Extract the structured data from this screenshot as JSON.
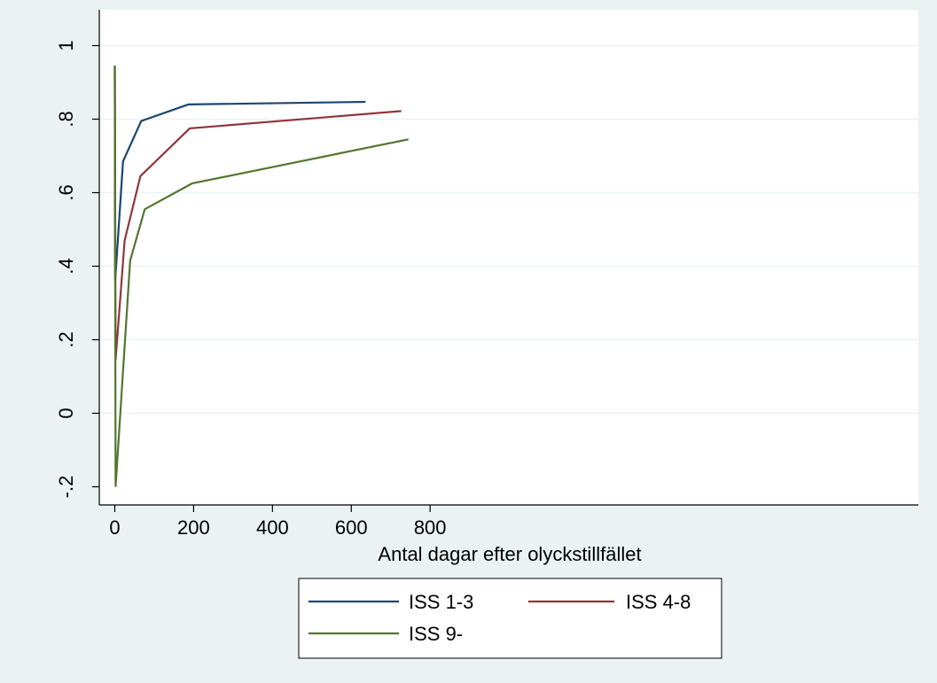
{
  "chart_data": {
    "type": "line",
    "xlabel": "Antal dagar efter olyckstillfället",
    "ylabel": "",
    "xlim": [
      -20,
      805
    ],
    "ylim": [
      -0.2,
      1.0
    ],
    "xticks": [
      0,
      200,
      400,
      600,
      800
    ],
    "xtick_labels": [
      "0",
      "200",
      "400",
      "600",
      "800"
    ],
    "yticks": [
      -0.2,
      0,
      0.2,
      0.4,
      0.6,
      0.8,
      1.0
    ],
    "ytick_labels": [
      "-.2",
      "0",
      ".2",
      ".4",
      ".6",
      ".8",
      "1"
    ],
    "grid": "horizontal",
    "legend_position": "bottom",
    "series": [
      {
        "name": "ISS 1-3",
        "color": "#1a476f",
        "x": [
          0,
          1,
          21,
          67,
          187,
          636
        ],
        "y": [
          0.945,
          0.36,
          0.685,
          0.795,
          0.84,
          0.847
        ]
      },
      {
        "name": "ISS 4-8",
        "color": "#90353b",
        "x": [
          0,
          2,
          25,
          65,
          190,
          727
        ],
        "y": [
          0.945,
          0.145,
          0.47,
          0.645,
          0.775,
          0.822
        ]
      },
      {
        "name": "ISS 9-",
        "color": "#55752f",
        "x": [
          0,
          2,
          39,
          76,
          196,
          745
        ],
        "y": [
          0.945,
          -0.2,
          0.415,
          0.555,
          0.625,
          0.745
        ]
      }
    ]
  }
}
